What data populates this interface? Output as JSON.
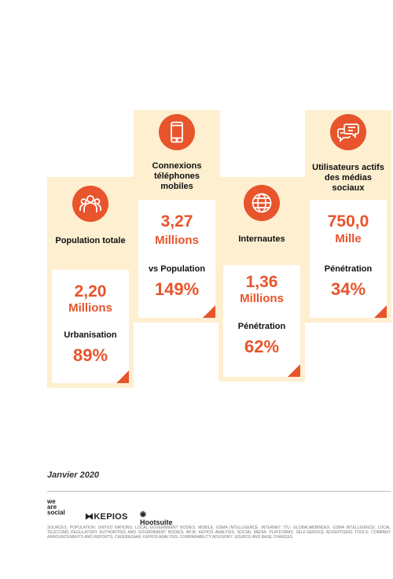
{
  "cards": [
    {
      "icon": "people-icon",
      "label": "Population totale",
      "value": "2,20",
      "unit": "Millions",
      "sublabel": "Urbanisation",
      "pct": "89%"
    },
    {
      "icon": "mobile-phone-icon",
      "label": "Connexions téléphones mobiles",
      "value": "3,27",
      "unit": "Millions",
      "sublabel": "vs Population",
      "pct": "149%"
    },
    {
      "icon": "globe-icon",
      "label": "Internautes",
      "value": "1,36",
      "unit": "Millions",
      "sublabel": "Pénétration",
      "pct": "62%"
    },
    {
      "icon": "chat-bubbles-icon",
      "label": "Utilisateurs actifs des médias sociaux",
      "value": "750,0",
      "unit": "Mille",
      "sublabel": "Pénétration",
      "pct": "34%"
    }
  ],
  "footer": {
    "date": "Janvier 2020",
    "logo_was": [
      "we",
      "are",
      "social"
    ],
    "logo_kepios": "KEPIOS",
    "logo_hootsuite": "Hootsuite",
    "sources": "SOURCES: POPULATION: UNITED NATIONS; LOCAL GOVERNMENT BODIES. MOBILE: GSMA INTELLIGENCE. INTERNET: ITU; GLOBALWEBINDEX; GSMA INTELLIGENCE; LOCAL TELECOMS REGULATORY AUTHORITIES AND GOVERNMENT BODIES; APJII; KEPIOS ANALYSIS. SOCIAL MEDIA: PLATFORMS' SELF-SERVICE ADVERTISING TOOLS; COMPANY ANNOUNCEMENTS AND REPORTS; CAFEBAZAAR; KEPIOS ANALYSIS. COMPARABILITY ADVISORY: SOURCE AND BASE CHANGES."
  },
  "colors": {
    "accent": "#e8542b",
    "panel": "#fdefcf"
  }
}
